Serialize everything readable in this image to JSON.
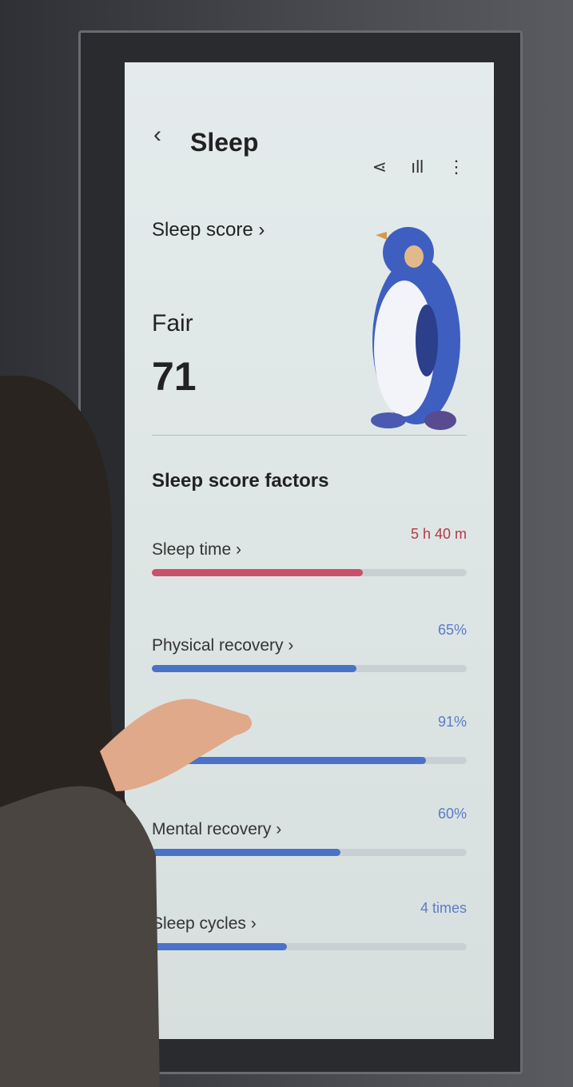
{
  "header": {
    "title": "Sleep",
    "back_icon": "chevron-left-icon",
    "actions": [
      "share-icon",
      "chart-bars-icon",
      "more-vert-icon"
    ]
  },
  "score": {
    "link_label": "Sleep score ›",
    "rating": "Fair",
    "value": "71"
  },
  "factors": {
    "title": "Sleep score factors",
    "items": [
      {
        "label": "Sleep time ›",
        "value": "5 h 40 m",
        "fill": 0.67,
        "color": "#c8506a",
        "value_color": "#b03a48"
      },
      {
        "label": "Physical recovery ›",
        "value": "65%",
        "fill": 0.65,
        "color": "#4a72c8",
        "value_color": "#5a7bc8"
      },
      {
        "label": "›",
        "value": "91%",
        "fill": 0.87,
        "color": "#4a72c8",
        "value_color": "#5a7bc8"
      },
      {
        "label": "Mental recovery ›",
        "value": "60%",
        "fill": 0.6,
        "color": "#4a72c8",
        "value_color": "#5a7bc8"
      },
      {
        "label": "Sleep cycles ›",
        "value": "4 times",
        "fill": 0.43,
        "color": "#4a72c8",
        "value_color": "#5a7bc8"
      }
    ]
  }
}
